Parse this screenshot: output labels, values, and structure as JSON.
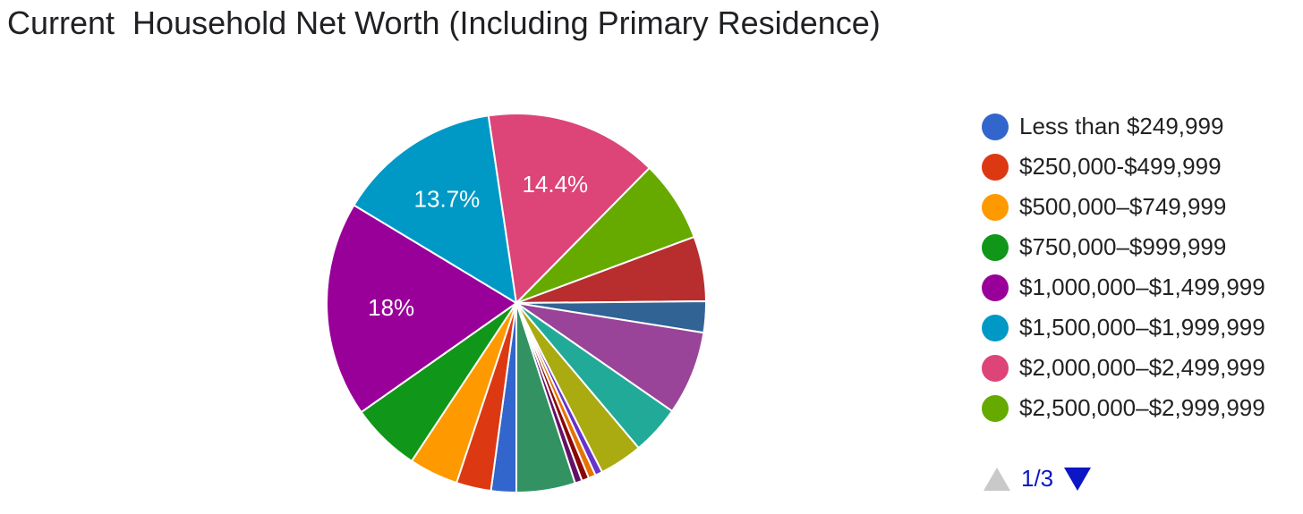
{
  "chart_data": {
    "type": "pie",
    "title": "Current  Household Net Worth (Including Primary Residence)",
    "legend_position": "right",
    "legend_page": "1/3",
    "start_angle_deg": 90,
    "direction": "clockwise",
    "slices": [
      {
        "label": "Less than $249,999",
        "value": 2.1,
        "color": "#3366cc",
        "data_label": ""
      },
      {
        "label": "$250,000-$499,999",
        "value": 2.9,
        "color": "#dc3912",
        "data_label": ""
      },
      {
        "label": "$500,000–$749,999",
        "value": 4.1,
        "color": "#ff9900",
        "data_label": ""
      },
      {
        "label": "$750,000–$999,999",
        "value": 5.8,
        "color": "#109618",
        "data_label": ""
      },
      {
        "label": "$1,000,000–$1,499,999",
        "value": 18.0,
        "color": "#990099",
        "data_label": "18%"
      },
      {
        "label": "$1,500,000–$1,999,999",
        "value": 13.7,
        "color": "#0099c6",
        "data_label": "13.7%"
      },
      {
        "label": "$2,000,000–$2,499,999",
        "value": 14.4,
        "color": "#dd4477",
        "data_label": "14.4%"
      },
      {
        "label": "$2,500,000–$2,999,999",
        "value": 6.8,
        "color": "#66aa00",
        "data_label": ""
      },
      {
        "label": "",
        "value": 5.4,
        "color": "#b82e2e",
        "data_label": ""
      },
      {
        "label": "",
        "value": 2.6,
        "color": "#316395",
        "data_label": ""
      },
      {
        "label": "",
        "value": 7.0,
        "color": "#994499",
        "data_label": ""
      },
      {
        "label": "",
        "value": 4.1,
        "color": "#22aa99",
        "data_label": ""
      },
      {
        "label": "",
        "value": 3.6,
        "color": "#aaaa11",
        "data_label": ""
      },
      {
        "label": "",
        "value": 0.6,
        "color": "#6633cc",
        "data_label": ""
      },
      {
        "label": "",
        "value": 0.6,
        "color": "#e67300",
        "data_label": ""
      },
      {
        "label": "",
        "value": 0.6,
        "color": "#8b0707",
        "data_label": ""
      },
      {
        "label": "",
        "value": 0.6,
        "color": "#651067",
        "data_label": ""
      },
      {
        "label": "",
        "value": 4.9,
        "color": "#329262",
        "data_label": ""
      }
    ]
  }
}
